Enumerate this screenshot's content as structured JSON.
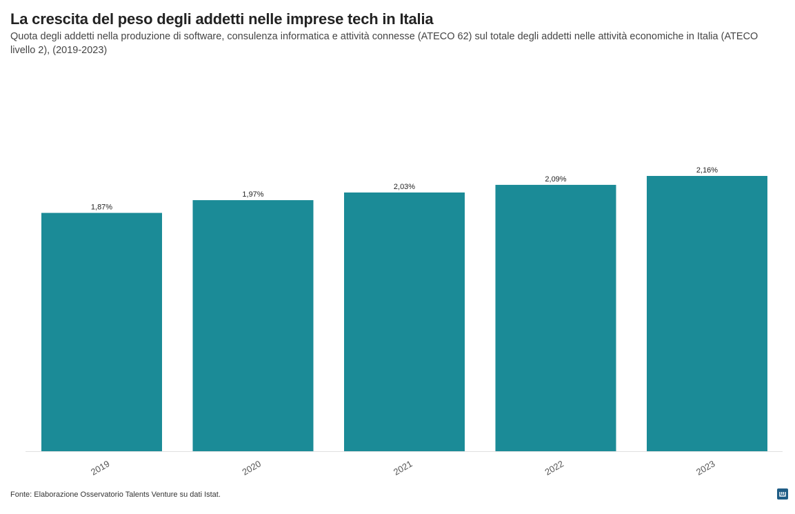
{
  "title": "La crescita del peso degli addetti nelle imprese tech in Italia",
  "subtitle": "Quota degli addetti nella produzione di software, consulenza informatica e attività connesse (ATECO 62) sul totale degli addetti nelle attività economiche in Italia (ATECO livello 2), (2019-2023)",
  "source": "Fonte: Elaborazione Osservatorio Talents Venture su dati Istat.",
  "logo_icon": "datawrapper-logo-icon",
  "colors": {
    "bar": "#1b8b97",
    "baseline": "#e0e0e0"
  },
  "chart_data": {
    "type": "bar",
    "categories": [
      "2019",
      "2020",
      "2021",
      "2022",
      "2023"
    ],
    "values": [
      1.87,
      1.97,
      2.03,
      2.09,
      2.16
    ],
    "value_labels": [
      "1,87%",
      "1,97%",
      "2,03%",
      "2,09%",
      "2,16%"
    ],
    "title": "La crescita del peso degli addetti nelle imprese tech in Italia",
    "xlabel": "",
    "ylabel": "",
    "ylim": [
      0,
      2.16
    ],
    "grid": false,
    "x_tick_rotation": -30
  }
}
